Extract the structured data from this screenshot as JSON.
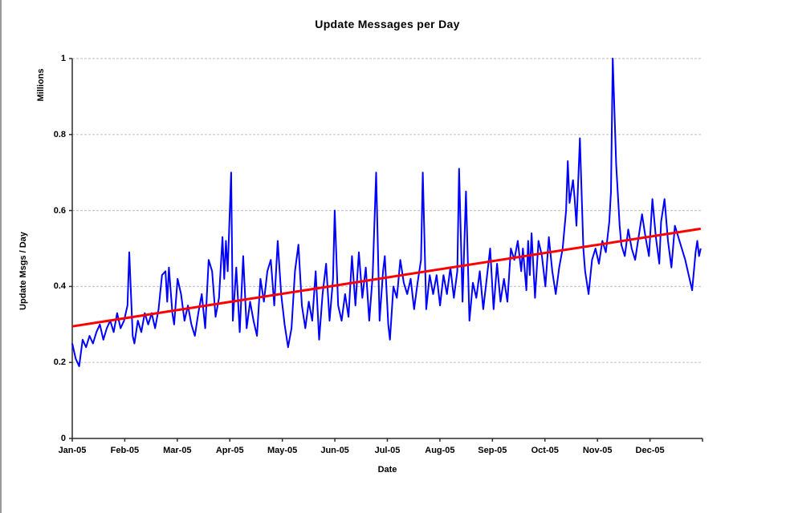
{
  "title": "Update Messages per Day",
  "colors": {
    "background": "#ffffff",
    "axis": "#2b2b2b",
    "gridline": "#c8c8c8",
    "text": "#000000",
    "daily_series": "#0000ff",
    "trend_series": "#ff0000",
    "left_edge": "#9a9a9a"
  },
  "chart_data": {
    "type": "line",
    "title": "Update Messages per Day",
    "xlabel": "Date",
    "ylabel": "Update Msgs / Day",
    "y_units_label": "Millions",
    "x_tick_labels": [
      "Jan-05",
      "Feb-05",
      "Mar-05",
      "Apr-05",
      "May-05",
      "Jun-05",
      "Jul-05",
      "Aug-05",
      "Sep-05",
      "Oct-05",
      "Nov-05",
      "Dec-05"
    ],
    "y_tick_labels": [
      "0",
      "0.2",
      "0.4",
      "0.6",
      "0.8",
      "1"
    ],
    "y_tick_values": [
      0,
      0.2,
      0.4,
      0.6,
      0.8,
      1
    ],
    "ylim": [
      0,
      1
    ],
    "x_days_span": 365,
    "months_shown": 12,
    "grid": "horizontal-dashed",
    "legend_position": "none",
    "series": [
      {
        "name": "update-msgs-per-day",
        "color": "#0000ff",
        "stroke_width": 2,
        "points": [
          [
            0,
            0.25
          ],
          [
            2,
            0.21
          ],
          [
            4,
            0.19
          ],
          [
            6,
            0.26
          ],
          [
            8,
            0.24
          ],
          [
            10,
            0.27
          ],
          [
            12,
            0.25
          ],
          [
            14,
            0.28
          ],
          [
            16,
            0.3
          ],
          [
            18,
            0.26
          ],
          [
            20,
            0.29
          ],
          [
            22,
            0.31
          ],
          [
            24,
            0.28
          ],
          [
            26,
            0.33
          ],
          [
            28,
            0.29
          ],
          [
            30,
            0.31
          ],
          [
            32,
            0.35
          ],
          [
            33,
            0.49
          ],
          [
            35,
            0.27
          ],
          [
            36,
            0.25
          ],
          [
            38,
            0.31
          ],
          [
            40,
            0.28
          ],
          [
            42,
            0.33
          ],
          [
            44,
            0.3
          ],
          [
            46,
            0.33
          ],
          [
            48,
            0.29
          ],
          [
            50,
            0.34
          ],
          [
            52,
            0.43
          ],
          [
            54,
            0.44
          ],
          [
            55,
            0.36
          ],
          [
            56,
            0.45
          ],
          [
            58,
            0.33
          ],
          [
            59,
            0.3
          ],
          [
            61,
            0.42
          ],
          [
            63,
            0.38
          ],
          [
            65,
            0.31
          ],
          [
            67,
            0.35
          ],
          [
            69,
            0.3
          ],
          [
            71,
            0.27
          ],
          [
            73,
            0.33
          ],
          [
            75,
            0.38
          ],
          [
            77,
            0.29
          ],
          [
            79,
            0.47
          ],
          [
            81,
            0.44
          ],
          [
            83,
            0.32
          ],
          [
            85,
            0.37
          ],
          [
            87,
            0.53
          ],
          [
            88,
            0.42
          ],
          [
            89,
            0.52
          ],
          [
            90,
            0.44
          ],
          [
            92,
            0.7
          ],
          [
            93,
            0.31
          ],
          [
            95,
            0.45
          ],
          [
            97,
            0.28
          ],
          [
            99,
            0.48
          ],
          [
            101,
            0.29
          ],
          [
            103,
            0.36
          ],
          [
            105,
            0.31
          ],
          [
            107,
            0.27
          ],
          [
            109,
            0.42
          ],
          [
            111,
            0.36
          ],
          [
            113,
            0.44
          ],
          [
            115,
            0.47
          ],
          [
            117,
            0.35
          ],
          [
            119,
            0.52
          ],
          [
            121,
            0.38
          ],
          [
            123,
            0.3
          ],
          [
            125,
            0.24
          ],
          [
            127,
            0.29
          ],
          [
            129,
            0.44
          ],
          [
            131,
            0.51
          ],
          [
            133,
            0.35
          ],
          [
            135,
            0.29
          ],
          [
            137,
            0.36
          ],
          [
            139,
            0.31
          ],
          [
            141,
            0.44
          ],
          [
            143,
            0.26
          ],
          [
            145,
            0.38
          ],
          [
            147,
            0.46
          ],
          [
            149,
            0.31
          ],
          [
            151,
            0.42
          ],
          [
            152,
            0.6
          ],
          [
            154,
            0.35
          ],
          [
            156,
            0.31
          ],
          [
            158,
            0.38
          ],
          [
            160,
            0.32
          ],
          [
            162,
            0.48
          ],
          [
            164,
            0.35
          ],
          [
            166,
            0.49
          ],
          [
            168,
            0.37
          ],
          [
            170,
            0.45
          ],
          [
            172,
            0.31
          ],
          [
            174,
            0.43
          ],
          [
            176,
            0.7
          ],
          [
            178,
            0.31
          ],
          [
            180,
            0.44
          ],
          [
            181,
            0.48
          ],
          [
            183,
            0.3
          ],
          [
            184,
            0.26
          ],
          [
            186,
            0.4
          ],
          [
            188,
            0.37
          ],
          [
            190,
            0.47
          ],
          [
            192,
            0.41
          ],
          [
            194,
            0.38
          ],
          [
            196,
            0.42
          ],
          [
            198,
            0.34
          ],
          [
            200,
            0.41
          ],
          [
            202,
            0.47
          ],
          [
            203,
            0.7
          ],
          [
            205,
            0.34
          ],
          [
            207,
            0.43
          ],
          [
            209,
            0.38
          ],
          [
            211,
            0.43
          ],
          [
            213,
            0.35
          ],
          [
            215,
            0.43
          ],
          [
            217,
            0.38
          ],
          [
            219,
            0.45
          ],
          [
            221,
            0.37
          ],
          [
            223,
            0.44
          ],
          [
            224,
            0.71
          ],
          [
            226,
            0.36
          ],
          [
            228,
            0.65
          ],
          [
            230,
            0.31
          ],
          [
            232,
            0.41
          ],
          [
            234,
            0.37
          ],
          [
            236,
            0.44
          ],
          [
            238,
            0.34
          ],
          [
            240,
            0.42
          ],
          [
            242,
            0.5
          ],
          [
            244,
            0.34
          ],
          [
            246,
            0.46
          ],
          [
            248,
            0.36
          ],
          [
            250,
            0.42
          ],
          [
            252,
            0.36
          ],
          [
            254,
            0.5
          ],
          [
            256,
            0.47
          ],
          [
            258,
            0.52
          ],
          [
            260,
            0.44
          ],
          [
            261,
            0.5
          ],
          [
            263,
            0.39
          ],
          [
            264,
            0.52
          ],
          [
            265,
            0.43
          ],
          [
            266,
            0.54
          ],
          [
            268,
            0.37
          ],
          [
            270,
            0.52
          ],
          [
            272,
            0.48
          ],
          [
            274,
            0.4
          ],
          [
            276,
            0.53
          ],
          [
            278,
            0.44
          ],
          [
            280,
            0.38
          ],
          [
            282,
            0.45
          ],
          [
            284,
            0.5
          ],
          [
            286,
            0.6
          ],
          [
            287,
            0.73
          ],
          [
            288,
            0.62
          ],
          [
            290,
            0.68
          ],
          [
            291,
            0.63
          ],
          [
            292,
            0.56
          ],
          [
            294,
            0.79
          ],
          [
            296,
            0.5
          ],
          [
            297,
            0.44
          ],
          [
            299,
            0.38
          ],
          [
            301,
            0.47
          ],
          [
            303,
            0.5
          ],
          [
            305,
            0.46
          ],
          [
            307,
            0.52
          ],
          [
            309,
            0.49
          ],
          [
            311,
            0.57
          ],
          [
            312,
            0.65
          ],
          [
            313,
            1.0
          ],
          [
            315,
            0.72
          ],
          [
            317,
            0.56
          ],
          [
            318,
            0.51
          ],
          [
            320,
            0.48
          ],
          [
            322,
            0.55
          ],
          [
            324,
            0.5
          ],
          [
            326,
            0.47
          ],
          [
            328,
            0.53
          ],
          [
            330,
            0.59
          ],
          [
            332,
            0.53
          ],
          [
            334,
            0.48
          ],
          [
            336,
            0.63
          ],
          [
            338,
            0.53
          ],
          [
            340,
            0.46
          ],
          [
            341,
            0.57
          ],
          [
            343,
            0.63
          ],
          [
            345,
            0.52
          ],
          [
            347,
            0.45
          ],
          [
            349,
            0.56
          ],
          [
            351,
            0.53
          ],
          [
            353,
            0.5
          ],
          [
            355,
            0.47
          ],
          [
            357,
            0.43
          ],
          [
            359,
            0.39
          ],
          [
            361,
            0.49
          ],
          [
            362,
            0.52
          ],
          [
            363,
            0.48
          ],
          [
            364,
            0.5
          ]
        ]
      },
      {
        "name": "linear-trend",
        "color": "#ff0000",
        "stroke_width": 3,
        "points": [
          [
            0,
            0.295
          ],
          [
            364,
            0.552
          ]
        ]
      }
    ]
  }
}
